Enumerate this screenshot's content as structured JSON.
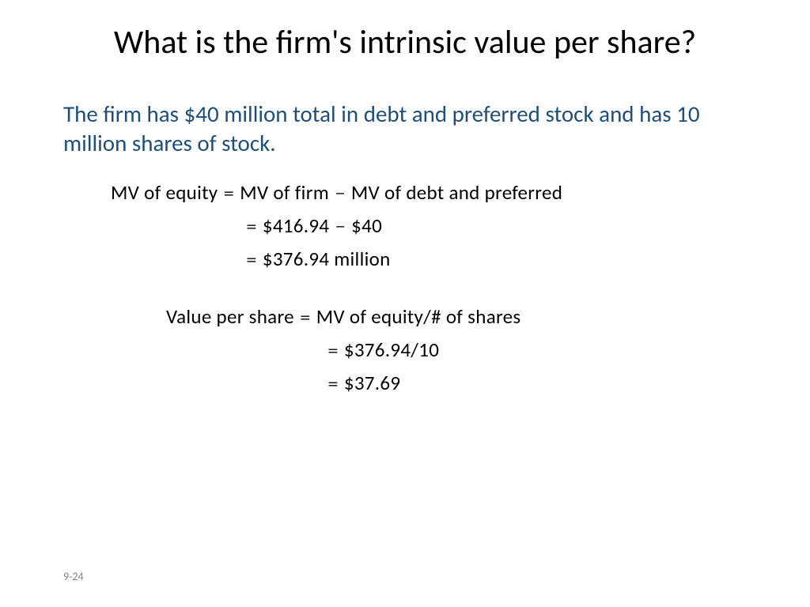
{
  "title": "What is the firm's intrinsic value per share?",
  "body": "The firm has $40 million total in debt and preferred stock and has 10 million shares of stock.",
  "eq1": {
    "lhs": "MV of equity",
    "rhs1_a": "MV of firm",
    "rhs1_b": "MV of debt and preferred",
    "rhs2_a": "$416.94",
    "rhs2_b": "$40",
    "rhs3": "$376.94 million"
  },
  "eq2": {
    "lhs": "Value per share",
    "rhs1": "MV of equity/# of shares",
    "rhs2": "$376.94/10",
    "rhs3": "$37.69"
  },
  "slideNumber": "9-24",
  "colors": {
    "title": "#000000",
    "body": "#1f4e79",
    "equation": "#000000",
    "slideNum": "#808080",
    "background": "#ffffff"
  },
  "fonts": {
    "title_size": 42,
    "body_size": 29,
    "equation_size": 25,
    "slidenum_size": 14
  }
}
